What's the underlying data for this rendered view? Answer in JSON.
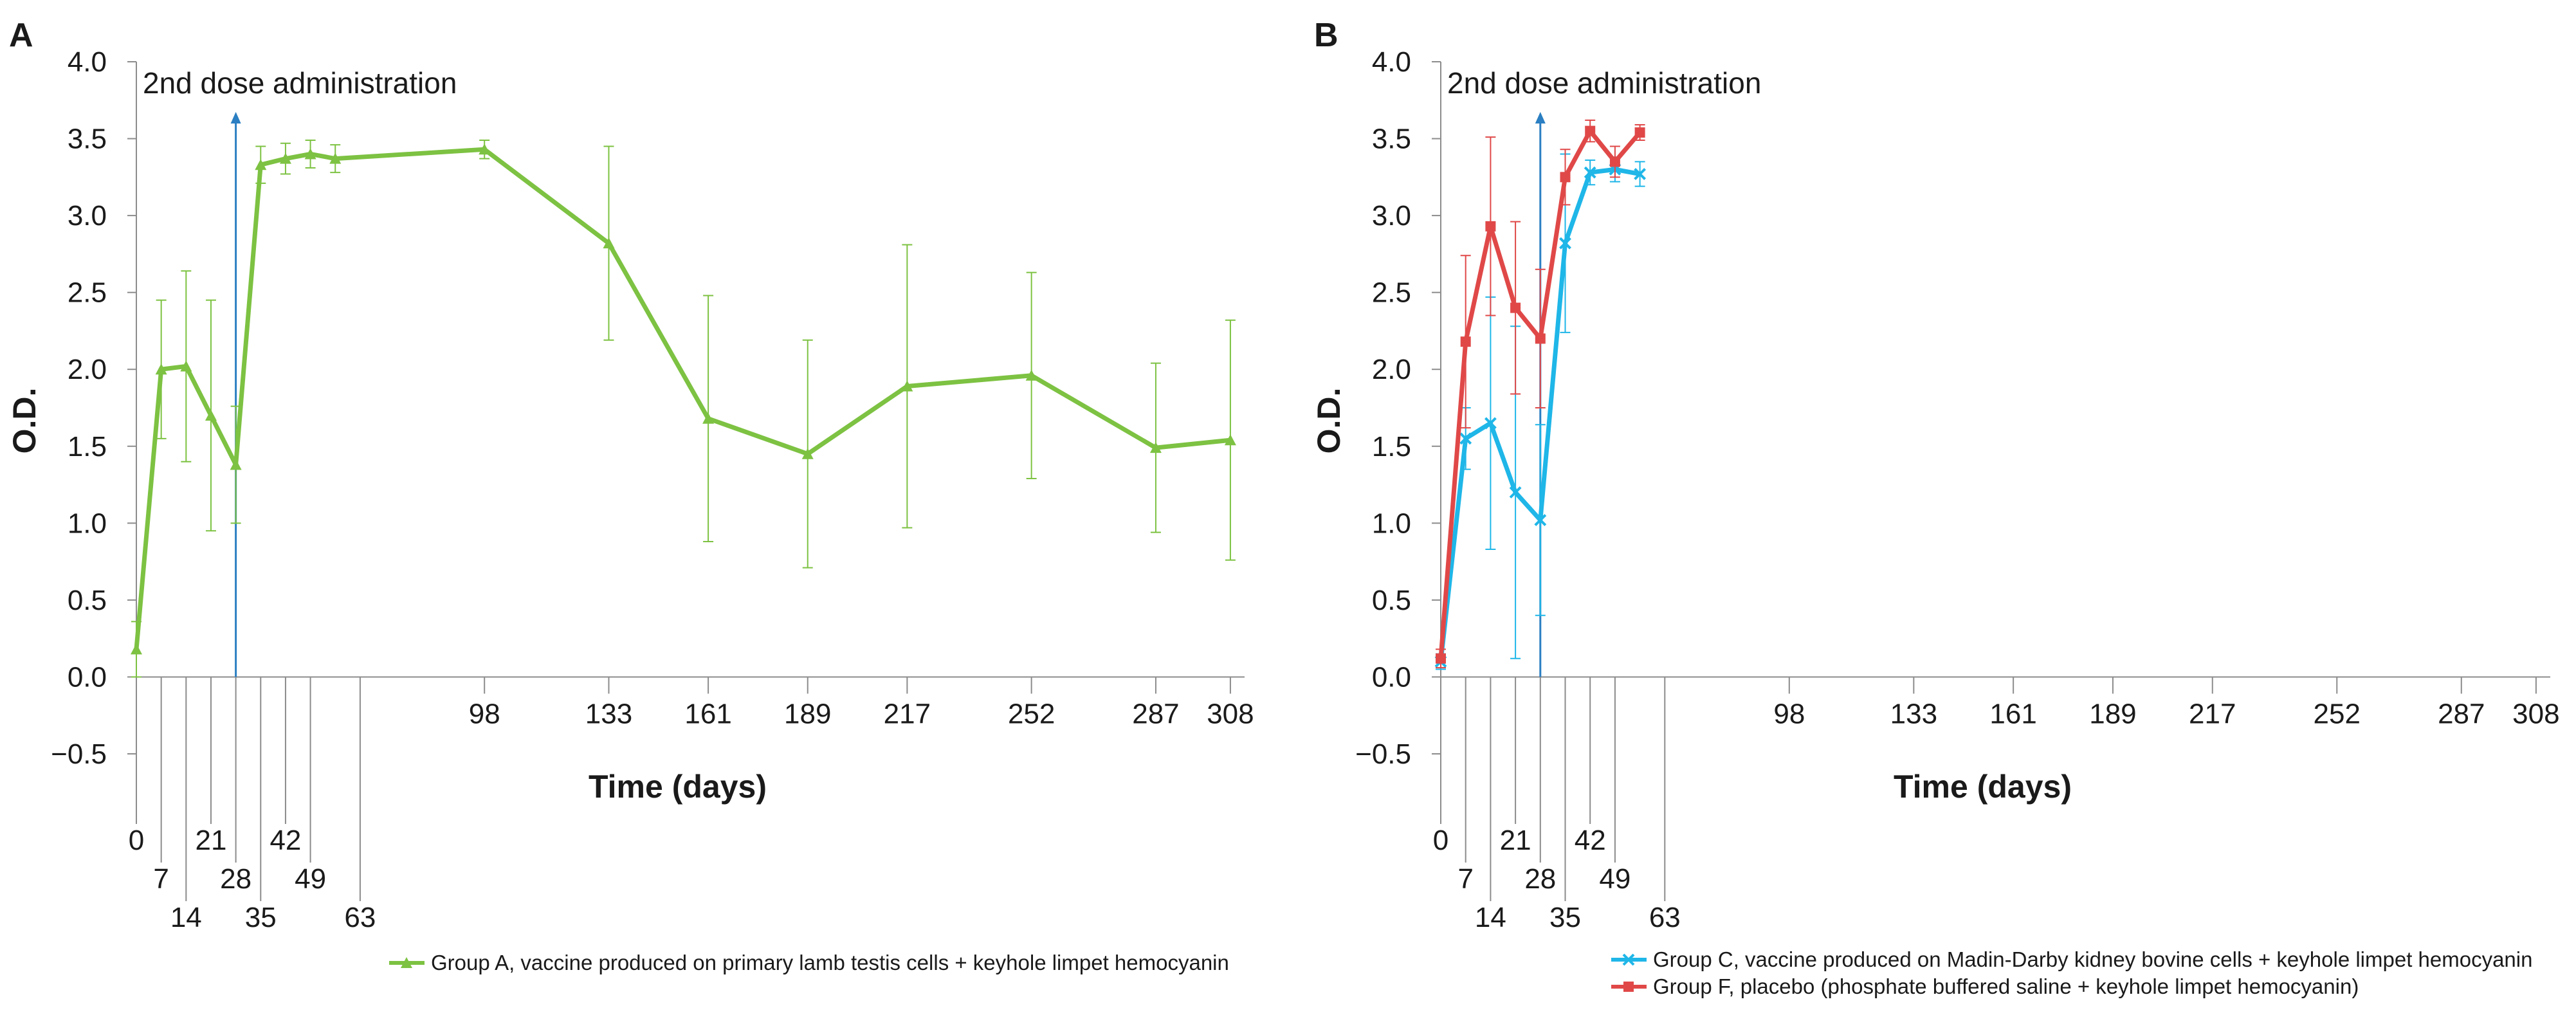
{
  "chart_data": [
    {
      "type": "line",
      "panel_label": "A",
      "title": "",
      "xlabel": "Time (days)",
      "ylabel": "O.D.",
      "ylim": [
        -0.5,
        4.0
      ],
      "y_ticks": [
        "−0.5",
        "0.0",
        "0.5",
        "1.0",
        "1.5",
        "2.0",
        "2.5",
        "3.0",
        "3.5",
        "4.0"
      ],
      "x_ticks_upper": [
        "98",
        "133",
        "161",
        "189",
        "217",
        "252",
        "287",
        "308"
      ],
      "x_ticks_staggered": [
        {
          "label": "0",
          "x": 0,
          "row": 0
        },
        {
          "label": "7",
          "x": 7,
          "row": 1
        },
        {
          "label": "14",
          "x": 14,
          "row": 2
        },
        {
          "label": "21",
          "x": 21,
          "row": 0
        },
        {
          "label": "28",
          "x": 28,
          "row": 1
        },
        {
          "label": "35",
          "x": 35,
          "row": 2
        },
        {
          "label": "42",
          "x": 42,
          "row": 0
        },
        {
          "label": "49",
          "x": 49,
          "row": 1
        },
        {
          "label": "63",
          "x": 63,
          "row": 2
        }
      ],
      "annotation": {
        "text": "2nd dose administration",
        "x": 28
      },
      "annotation_color": "#2b7fc2",
      "series": [
        {
          "name": "Group A, vaccine produced on primary lamb testis cells + keyhole limpet hemocyanin",
          "color": "#7dc242",
          "marker": "triangle",
          "x": [
            0,
            7,
            14,
            21,
            28,
            35,
            42,
            49,
            56,
            98,
            133,
            161,
            189,
            217,
            252,
            287,
            308
          ],
          "y": [
            0.18,
            2.0,
            2.02,
            1.7,
            1.38,
            3.33,
            3.37,
            3.4,
            3.37,
            3.43,
            2.82,
            1.68,
            1.45,
            1.89,
            1.96,
            1.49,
            1.54
          ],
          "err": [
            0.18,
            0.45,
            0.62,
            0.75,
            0.38,
            0.12,
            0.1,
            0.09,
            0.09,
            0.06,
            0.63,
            0.8,
            0.74,
            0.92,
            0.67,
            0.55,
            0.78
          ]
        }
      ]
    },
    {
      "type": "line",
      "panel_label": "B",
      "title": "",
      "xlabel": "Time (days)",
      "ylabel": "O.D.",
      "ylim": [
        -0.5,
        4.0
      ],
      "y_ticks": [
        "−0.5",
        "0.0",
        "0.5",
        "1.0",
        "1.5",
        "2.0",
        "2.5",
        "3.0",
        "3.5",
        "4.0"
      ],
      "x_ticks_upper": [
        "98",
        "133",
        "161",
        "189",
        "217",
        "252",
        "287",
        "308"
      ],
      "x_ticks_staggered": [
        {
          "label": "0",
          "x": 0,
          "row": 0
        },
        {
          "label": "7",
          "x": 7,
          "row": 1
        },
        {
          "label": "14",
          "x": 14,
          "row": 2
        },
        {
          "label": "21",
          "x": 21,
          "row": 0
        },
        {
          "label": "28",
          "x": 28,
          "row": 1
        },
        {
          "label": "35",
          "x": 35,
          "row": 2
        },
        {
          "label": "42",
          "x": 42,
          "row": 0
        },
        {
          "label": "49",
          "x": 49,
          "row": 1
        },
        {
          "label": "63",
          "x": 63,
          "row": 2
        }
      ],
      "annotation": {
        "text": "2nd dose administration",
        "x": 28
      },
      "annotation_color": "#2b7fc2",
      "series": [
        {
          "name": "Group C, vaccine produced on Madin-Darby kidney bovine cells + keyhole limpet hemocyanin",
          "color": "#1fb6e8",
          "marker": "x",
          "x": [
            0,
            7,
            14,
            21,
            28,
            35,
            42,
            49,
            56
          ],
          "y": [
            0.1,
            1.55,
            1.65,
            1.2,
            1.02,
            2.82,
            3.28,
            3.3,
            3.27
          ],
          "err": [
            0.05,
            0.2,
            0.82,
            1.08,
            0.62,
            0.58,
            0.08,
            0.08,
            0.08
          ]
        },
        {
          "name": "Group F, placebo (phosphate buffered saline + keyhole limpet hemocyanin)",
          "color": "#e04848",
          "marker": "square",
          "x": [
            0,
            7,
            14,
            21,
            28,
            35,
            42,
            49,
            56
          ],
          "y": [
            0.12,
            2.18,
            2.93,
            2.4,
            2.2,
            3.25,
            3.55,
            3.35,
            3.54
          ],
          "err": [
            0.06,
            0.56,
            0.58,
            0.56,
            0.45,
            0.18,
            0.07,
            0.1,
            0.05
          ]
        }
      ]
    }
  ]
}
